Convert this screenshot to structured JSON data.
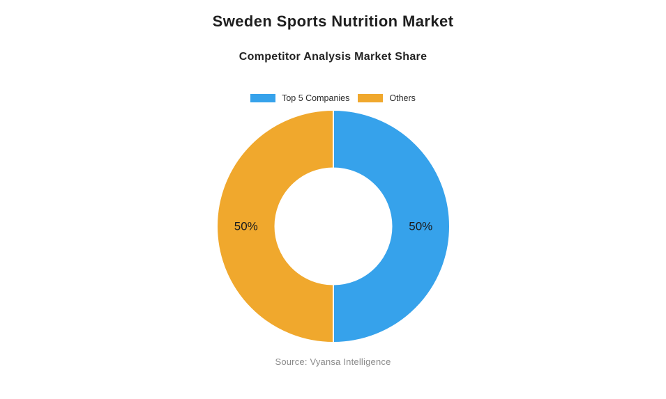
{
  "page": {
    "title": "Sweden Sports Nutrition Market",
    "subtitle": "Competitor Analysis Market Share",
    "source": "Source: Vyansa Intelligence"
  },
  "chart_data": {
    "type": "pie",
    "variant": "doughnut",
    "title": "Sweden Sports Nutrition Market",
    "subtitle": "Competitor Analysis Market Share",
    "categories": [
      "Top 5 Companies",
      "Others"
    ],
    "values": [
      50,
      50
    ],
    "unit": "%",
    "slice_labels": [
      "50%",
      "50%"
    ],
    "colors": [
      "#36A2EB",
      "#F0A82D"
    ],
    "border_color": "#FFFFFF",
    "border_width": 2,
    "cutout_percent": 50,
    "start_angle_deg": 0,
    "direction": "clockwise",
    "legend_position": "top",
    "label_color": "#1c1c1c",
    "source": "Source: Vyansa Intelligence"
  }
}
